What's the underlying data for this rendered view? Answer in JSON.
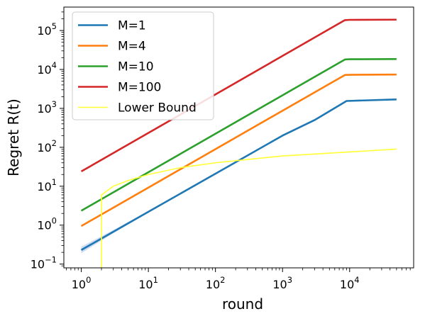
{
  "chart_data": {
    "type": "line",
    "xlabel": "round",
    "ylabel": "Regret R(t)",
    "xscale": "log",
    "yscale": "log",
    "xlim": [
      0.55,
      90000
    ],
    "ylim": [
      0.08,
      400000
    ],
    "grid": false,
    "legend_position": "top-left",
    "x_ticks": [
      {
        "value": 1,
        "base": "10",
        "exp": "0"
      },
      {
        "value": 10,
        "base": "10",
        "exp": "1"
      },
      {
        "value": 100,
        "base": "10",
        "exp": "2"
      },
      {
        "value": 1000,
        "base": "10",
        "exp": "3"
      },
      {
        "value": 10000,
        "base": "10",
        "exp": "4"
      }
    ],
    "y_ticks": [
      {
        "value": 0.1,
        "base": "10",
        "exp": "−1"
      },
      {
        "value": 1,
        "base": "10",
        "exp": "0"
      },
      {
        "value": 10,
        "base": "10",
        "exp": "1"
      },
      {
        "value": 100,
        "base": "10",
        "exp": "2"
      },
      {
        "value": 1000,
        "base": "10",
        "exp": "3"
      },
      {
        "value": 10000,
        "base": "10",
        "exp": "4"
      },
      {
        "value": 100000,
        "base": "10",
        "exp": "5"
      }
    ],
    "series": [
      {
        "name": "M=1",
        "color": "#1f77b4",
        "points": [
          [
            1,
            0.23
          ],
          [
            10,
            2.2
          ],
          [
            100,
            21
          ],
          [
            1000,
            200
          ],
          [
            3000,
            500
          ],
          [
            9000,
            1550
          ],
          [
            50000,
            1700
          ]
        ],
        "band": {
          "color": "#aec7e8",
          "upper": [
            [
              1,
              0.28
            ],
            [
              3,
              0.75
            ],
            [
              10,
              2.3
            ]
          ],
          "lower": [
            [
              1,
              0.19
            ],
            [
              3,
              0.62
            ],
            [
              10,
              2.1
            ]
          ]
        }
      },
      {
        "name": "M=4",
        "color": "#ff7f0e",
        "points": [
          [
            1,
            0.95
          ],
          [
            8500,
            7200
          ],
          [
            10000,
            7300
          ],
          [
            50000,
            7400
          ]
        ]
      },
      {
        "name": "M=10",
        "color": "#2ca02c",
        "points": [
          [
            1,
            2.35
          ],
          [
            8500,
            18000
          ],
          [
            10000,
            18300
          ],
          [
            50000,
            18500
          ]
        ]
      },
      {
        "name": "M=100",
        "color": "#d62728",
        "points": [
          [
            1,
            24
          ],
          [
            8500,
            185000
          ],
          [
            10000,
            188000
          ],
          [
            50000,
            190000
          ]
        ]
      },
      {
        "name": "Lower Bound",
        "color": "#ffff33",
        "points": [
          [
            2,
            0.001
          ],
          [
            2,
            6
          ],
          [
            3,
            10
          ],
          [
            5,
            14
          ],
          [
            10,
            20
          ],
          [
            30,
            30
          ],
          [
            100,
            40
          ],
          [
            1000,
            60
          ],
          [
            10000,
            76
          ],
          [
            50000,
            90
          ]
        ]
      }
    ]
  }
}
